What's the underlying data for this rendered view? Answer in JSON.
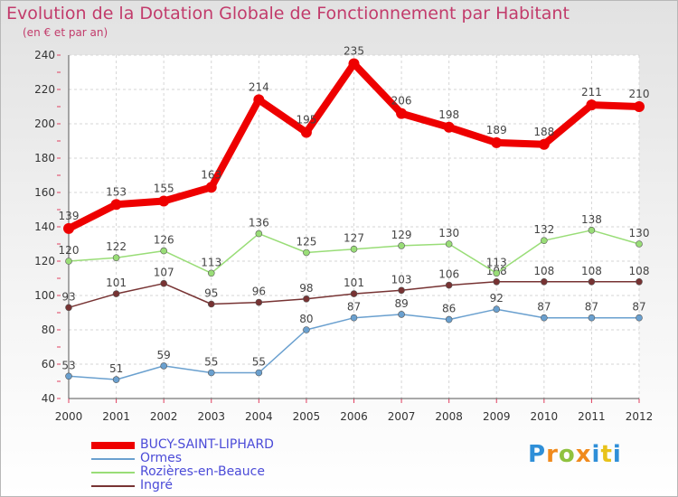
{
  "title": "Evolution de la Dotation Globale de Fonctionnement par Habitant",
  "subtitle": "(en € et par an)",
  "chart_data": {
    "type": "line",
    "title": "Evolution de la Dotation Globale de Fonctionnement par Habitant",
    "subtitle": "(en € et par an)",
    "categories": [
      "2000",
      "2001",
      "2002",
      "2003",
      "2004",
      "2005",
      "2006",
      "2007",
      "2008",
      "2009",
      "2010",
      "2011",
      "2012"
    ],
    "ylim": [
      40,
      240
    ],
    "yticks": [
      40,
      60,
      80,
      100,
      120,
      140,
      160,
      180,
      200,
      220,
      240
    ],
    "grid": true,
    "legend_position": "bottom-left",
    "series": [
      {
        "name": "BUCY-SAINT-LIPHARD",
        "color": "#ee0000",
        "values": [
          139,
          153,
          155,
          163,
          214,
          195,
          235,
          206,
          198,
          189,
          188,
          211,
          210
        ]
      },
      {
        "name": "Ormes",
        "color": "#6aa0cf",
        "values": [
          53,
          51,
          59,
          55,
          55,
          80,
          87,
          89,
          86,
          92,
          87,
          87,
          87
        ]
      },
      {
        "name": "Rozières-en-Beauce",
        "color": "#99dd77",
        "values": [
          120,
          122,
          126,
          113,
          136,
          125,
          127,
          129,
          130,
          113,
          132,
          138,
          130
        ]
      },
      {
        "name": "Ingré",
        "color": "#773333",
        "values": [
          93,
          101,
          107,
          95,
          96,
          98,
          101,
          103,
          106,
          108,
          108,
          108,
          108
        ]
      }
    ]
  },
  "logo": {
    "letters": [
      "P",
      "r",
      "o",
      "x",
      "i",
      "t",
      "i"
    ],
    "colors": [
      "#2f8fd8",
      "#f08a1c",
      "#8fc23f",
      "#f08a1c",
      "#2f8fd8",
      "#e8c21a",
      "#2f8fd8"
    ]
  }
}
